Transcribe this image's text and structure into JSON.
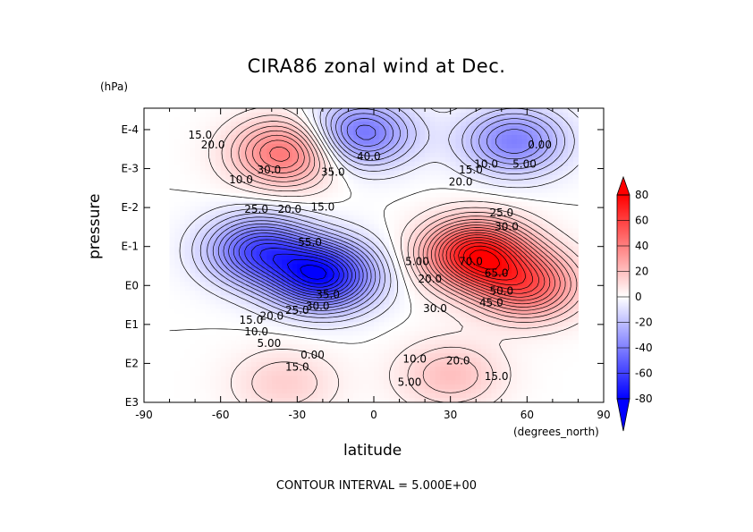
{
  "title": "CIRA86 zonal wind at Dec.",
  "y_unit": "(hPa)",
  "x_unit": "(degrees_north)",
  "footer": "CONTOUR INTERVAL = 5.000E+00",
  "chart_data": {
    "type": "heatmap",
    "title": "CIRA86 zonal wind at Dec.",
    "xlabel": "latitude",
    "ylabel": "pressure",
    "x_unit": "(degrees_north)",
    "y_unit": "(hPa)",
    "xlim": [
      -90,
      90
    ],
    "x_ticks": [
      "-90",
      "-60",
      "-30",
      "0",
      "30",
      "60",
      "90"
    ],
    "y_ticks": [
      "E-4",
      "E-3",
      "E-2",
      "E-1",
      "E0",
      "E1",
      "E2",
      "E3"
    ],
    "y_scale": "log",
    "data_extent_lat": [
      -80,
      80
    ],
    "contour_interval": 5.0,
    "colorbar": {
      "min": -80,
      "max": 80,
      "ticks": [
        "80",
        "60",
        "40",
        "20",
        "0",
        "-20",
        "-40",
        "-60",
        "-80"
      ],
      "colors": [
        "#0000ff",
        "#ffffff",
        "#ff0000"
      ]
    },
    "features": [
      {
        "lat": -35,
        "log10p": -3.4,
        "value": 45,
        "type": "max"
      },
      {
        "lat": 55,
        "log10p": -3.7,
        "value": -40,
        "type": "min"
      },
      {
        "lat": -5,
        "log10p": -3.9,
        "value": -45,
        "type": "min"
      },
      {
        "lat": -20,
        "log10p": -0.25,
        "value": -75,
        "type": "min"
      },
      {
        "lat": -45,
        "log10p": -0.9,
        "value": -55,
        "type": "min"
      },
      {
        "lat": 40,
        "log10p": -0.8,
        "value": 75,
        "type": "max"
      },
      {
        "lat": 60,
        "log10p": 0.0,
        "value": 50,
        "type": "max"
      },
      {
        "lat": -35,
        "log10p": 2.5,
        "value": 15,
        "type": "max"
      },
      {
        "lat": 30,
        "log10p": 2.3,
        "value": 20,
        "type": "max"
      }
    ],
    "contour_labels": [
      {
        "text": "35.0",
        "lat": -16,
        "log10p": -2.9
      },
      {
        "text": "40.0",
        "lat": -2,
        "log10p": -3.3
      },
      {
        "text": "30.0",
        "lat": -41,
        "log10p": -2.95
      },
      {
        "text": "10.0",
        "lat": -52,
        "log10p": -2.7
      },
      {
        "text": "25.0",
        "lat": -46,
        "log10p": -1.95
      },
      {
        "text": "20.0",
        "lat": -33,
        "log10p": -1.95
      },
      {
        "text": "15.0",
        "lat": -20,
        "log10p": -2.0
      },
      {
        "text": "55.0",
        "lat": -25,
        "log10p": -1.1
      },
      {
        "text": "35.0",
        "lat": -18,
        "log10p": 0.25
      },
      {
        "text": "30.0",
        "lat": -22,
        "log10p": 0.55
      },
      {
        "text": "25.0",
        "lat": -30,
        "log10p": 0.65
      },
      {
        "text": "20.0",
        "lat": -40,
        "log10p": 0.8
      },
      {
        "text": "15.0",
        "lat": -48,
        "log10p": 0.9
      },
      {
        "text": "10.0",
        "lat": -46,
        "log10p": 1.2
      },
      {
        "text": "5.00",
        "lat": -41,
        "log10p": 1.5
      },
      {
        "text": "0.00",
        "lat": -24,
        "log10p": 1.8
      },
      {
        "text": "15.0",
        "lat": -30,
        "log10p": 2.1
      },
      {
        "text": "10.0",
        "lat": 16,
        "log10p": 1.9
      },
      {
        "text": "20.0",
        "lat": 33,
        "log10p": 1.95
      },
      {
        "text": "15.0",
        "lat": 48,
        "log10p": 2.35
      },
      {
        "text": "5.00",
        "lat": 14,
        "log10p": 2.5
      },
      {
        "text": "20.0",
        "lat": 34,
        "log10p": -2.65
      },
      {
        "text": "15.0",
        "lat": 38,
        "log10p": -2.95
      },
      {
        "text": "10.0",
        "lat": 44,
        "log10p": -3.1
      },
      {
        "text": "5.00",
        "lat": 59,
        "log10p": -3.1
      },
      {
        "text": "0.00",
        "lat": 65,
        "log10p": -3.6
      },
      {
        "text": "25.0",
        "lat": 50,
        "log10p": -1.85
      },
      {
        "text": "30.0",
        "lat": 52,
        "log10p": -1.5
      },
      {
        "text": "70.0",
        "lat": 38,
        "log10p": -0.6
      },
      {
        "text": "65.0",
        "lat": 48,
        "log10p": -0.3
      },
      {
        "text": "50.0",
        "lat": 50,
        "log10p": 0.15
      },
      {
        "text": "45.0",
        "lat": 46,
        "log10p": 0.45
      },
      {
        "text": "30.0",
        "lat": 24,
        "log10p": 0.6
      },
      {
        "text": "5.00",
        "lat": 17,
        "log10p": -0.6
      },
      {
        "text": "20.0",
        "lat": 22,
        "log10p": -0.15
      },
      {
        "text": "15.0",
        "lat": -68,
        "log10p": -3.85
      },
      {
        "text": "20.0",
        "lat": -63,
        "log10p": -3.6
      }
    ]
  }
}
